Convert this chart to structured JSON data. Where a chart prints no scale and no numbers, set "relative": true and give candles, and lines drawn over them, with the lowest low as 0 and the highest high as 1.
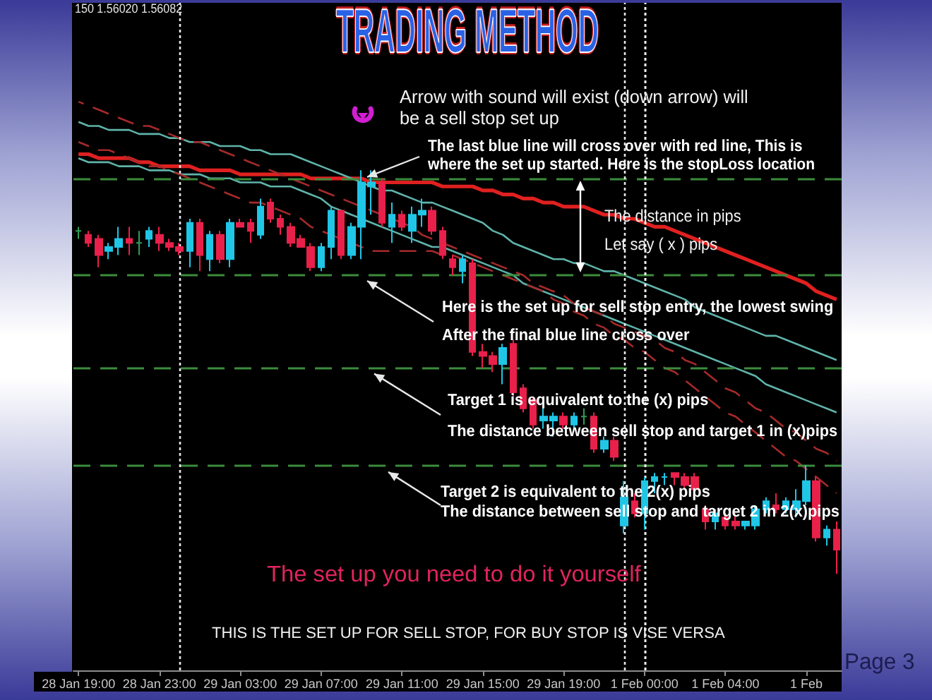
{
  "chart_data": {
    "type": "candlestick",
    "title": "TRADING METHOD",
    "relative": true,
    "marker": "none",
    "categories": [
      "28 Jan 19:00",
      null,
      null,
      null,
      null,
      null,
      null,
      null,
      "28 Jan 23:00",
      null,
      null,
      null,
      null,
      null,
      null,
      null,
      "29 Jan 03:00",
      null,
      null,
      null,
      null,
      null,
      null,
      null,
      "29 Jan 07:00",
      null,
      null,
      null,
      null,
      null,
      null,
      null,
      "29 Jan 11:00",
      null,
      null,
      null,
      null,
      null,
      null,
      null,
      "29 Jan 15:00",
      null,
      null,
      null,
      null,
      null,
      null,
      null,
      "29 Jan 19:00",
      null,
      null,
      null,
      null,
      null,
      null,
      null,
      "1 Feb 00:00",
      null,
      null,
      null,
      null,
      null,
      null,
      null,
      "1 Feb 04:00",
      null,
      null,
      null,
      null,
      null,
      null,
      null,
      "1 Feb",
      null,
      null,
      null
    ],
    "ohlc": [
      [
        0.85,
        0.86,
        0.83,
        0.85
      ],
      [
        0.84,
        0.85,
        0.81,
        0.82
      ],
      [
        0.83,
        0.84,
        0.76,
        0.79
      ],
      [
        0.8,
        0.82,
        0.78,
        0.81
      ],
      [
        0.81,
        0.86,
        0.79,
        0.83
      ],
      [
        0.83,
        0.86,
        0.79,
        0.82
      ],
      [
        0.82,
        0.85,
        0.79,
        0.82
      ],
      [
        0.83,
        0.86,
        0.81,
        0.85
      ],
      [
        0.84,
        0.86,
        0.8,
        0.82
      ],
      [
        0.82,
        0.83,
        0.8,
        0.81
      ],
      [
        0.81,
        0.82,
        0.79,
        0.8
      ],
      [
        0.8,
        0.88,
        0.76,
        0.87
      ],
      [
        0.87,
        0.88,
        0.75,
        0.79
      ],
      [
        0.78,
        0.85,
        0.75,
        0.84
      ],
      [
        0.84,
        0.85,
        0.77,
        0.78
      ],
      [
        0.78,
        0.88,
        0.76,
        0.87
      ],
      [
        0.87,
        0.88,
        0.86,
        0.86
      ],
      [
        0.87,
        0.88,
        0.82,
        0.85
      ],
      [
        0.84,
        0.93,
        0.83,
        0.91
      ],
      [
        0.92,
        0.93,
        0.87,
        0.88
      ],
      [
        0.88,
        0.89,
        0.84,
        0.86
      ],
      [
        0.86,
        0.87,
        0.81,
        0.82
      ],
      [
        0.83,
        0.84,
        0.81,
        0.81
      ],
      [
        0.81,
        0.82,
        0.75,
        0.76
      ],
      [
        0.76,
        0.82,
        0.75,
        0.81
      ],
      [
        0.81,
        0.91,
        0.78,
        0.9
      ],
      [
        0.9,
        0.9,
        0.78,
        0.79
      ],
      [
        0.79,
        0.87,
        0.78,
        0.86
      ],
      [
        0.86,
        1.0,
        0.78,
        0.97
      ],
      [
        0.96,
        1.0,
        0.89,
        0.97
      ],
      [
        0.97,
        0.98,
        0.86,
        0.87
      ],
      [
        0.86,
        0.92,
        0.82,
        0.89
      ],
      [
        0.89,
        0.9,
        0.85,
        0.86
      ],
      [
        0.85,
        0.91,
        0.82,
        0.89
      ],
      [
        0.89,
        0.93,
        0.86,
        0.9
      ],
      [
        0.9,
        0.91,
        0.84,
        0.85
      ],
      [
        0.85,
        0.86,
        0.78,
        0.79
      ],
      [
        0.78,
        0.79,
        0.74,
        0.76
      ],
      [
        0.75,
        0.79,
        0.72,
        0.78
      ],
      [
        0.77,
        0.78,
        0.54,
        0.55
      ],
      [
        0.55,
        0.57,
        0.51,
        0.54
      ],
      [
        0.54,
        0.55,
        0.5,
        0.52
      ],
      [
        0.52,
        0.57,
        0.47,
        0.56
      ],
      [
        0.57,
        0.58,
        0.44,
        0.45
      ],
      [
        0.46,
        0.47,
        0.4,
        0.41
      ],
      [
        0.43,
        0.44,
        0.36,
        0.37
      ],
      [
        0.38,
        0.41,
        0.36,
        0.39
      ],
      [
        0.38,
        0.4,
        0.34,
        0.39
      ],
      [
        0.39,
        0.4,
        0.36,
        0.37
      ],
      [
        0.37,
        0.4,
        0.36,
        0.39
      ],
      [
        0.39,
        0.41,
        0.37,
        0.39
      ],
      [
        0.39,
        0.4,
        0.3,
        0.31
      ],
      [
        0.31,
        0.34,
        0.3,
        0.33
      ],
      [
        0.33,
        0.34,
        0.28,
        0.29
      ],
      [
        0.12,
        0.23,
        0.1,
        0.19
      ],
      [
        0.18,
        0.2,
        0.14,
        0.15
      ],
      [
        0.15,
        0.24,
        0.11,
        0.23
      ],
      [
        0.23,
        0.25,
        0.2,
        0.24
      ],
      [
        0.24,
        0.25,
        0.22,
        0.24
      ],
      [
        0.25,
        0.25,
        0.22,
        0.24
      ],
      [
        0.24,
        0.25,
        0.21,
        0.22
      ],
      [
        0.24,
        0.25,
        0.2,
        0.21
      ],
      [
        0.16,
        0.17,
        0.11,
        0.13
      ],
      [
        0.13,
        0.16,
        0.11,
        0.15
      ],
      [
        0.14,
        0.15,
        0.11,
        0.12
      ],
      [
        0.13,
        0.15,
        0.11,
        0.12
      ],
      [
        0.12,
        0.13,
        0.11,
        0.13
      ],
      [
        0.12,
        0.17,
        0.11,
        0.16
      ],
      [
        0.16,
        0.19,
        0.15,
        0.18
      ],
      [
        0.17,
        0.2,
        0.15,
        0.16
      ],
      [
        0.16,
        0.19,
        0.15,
        0.18
      ],
      [
        0.16,
        0.21,
        0.14,
        0.18
      ],
      [
        0.18,
        0.27,
        0.17,
        0.23
      ],
      [
        0.23,
        0.24,
        0.08,
        0.09
      ],
      [
        0.09,
        0.12,
        0.07,
        0.11
      ],
      [
        0.11,
        0.13,
        0.0,
        0.06
      ]
    ],
    "colors": [
      "#2f9e56",
      "#e8204a",
      "#e8204a",
      "#1fc6e6",
      "#1fc6e6",
      "#e8204a",
      "#2f9e56",
      "#1fc6e6",
      "#e8204a",
      "#e8204a",
      "#e8204a",
      "#1fc6e6",
      "#e8204a",
      "#1fc6e6",
      "#e8204a",
      "#1fc6e6",
      "#e8204a",
      "#e8204a",
      "#1fc6e6",
      "#e8204a",
      "#e8204a",
      "#e8204a",
      "#e8204a",
      "#e8204a",
      "#1fc6e6",
      "#1fc6e6",
      "#e8204a",
      "#1fc6e6",
      "#1fc6e6",
      "#1fc6e6",
      "#e8204a",
      "#1fc6e6",
      "#e8204a",
      "#1fc6e6",
      "#1fc6e6",
      "#e8204a",
      "#e8204a",
      "#e8204a",
      "#1fc6e6",
      "#e8204a",
      "#e8204a",
      "#e8204a",
      "#1fc6e6",
      "#e8204a",
      "#e8204a",
      "#e8204a",
      "#1fc6e6",
      "#1fc6e6",
      "#e8204a",
      "#1fc6e6",
      "#2f9e56",
      "#e8204a",
      "#1fc6e6",
      "#e8204a",
      "#1fc6e6",
      "#e8204a",
      "#1fc6e6",
      "#1fc6e6",
      "#1fc6e6",
      "#e8204a",
      "#e8204a",
      "#e8204a",
      "#e8204a",
      "#1fc6e6",
      "#e8204a",
      "#e8204a",
      "#1fc6e6",
      "#1fc6e6",
      "#1fc6e6",
      "#e8204a",
      "#1fc6e6",
      "#1fc6e6",
      "#1fc6e6",
      "#e8204a",
      "#1fc6e6",
      "#e8204a"
    ],
    "series": [
      {
        "type": "line",
        "color": "#e02020",
        "line_style": "solid",
        "values": [
          1.04,
          1.04,
          1.03,
          1.03,
          1.03,
          1.03,
          1.02,
          1.02,
          1.01,
          1.01,
          1.01,
          1.01,
          1.0,
          1.0,
          1.0,
          1.0,
          0.99,
          0.99,
          0.99,
          0.99,
          0.99,
          0.99,
          0.99,
          0.98,
          0.98,
          0.98,
          0.98,
          0.98,
          0.98,
          0.97,
          0.97,
          0.97,
          0.97,
          0.97,
          0.97,
          0.97,
          0.96,
          0.96,
          0.96,
          0.96,
          0.95,
          0.95,
          0.94,
          0.94,
          0.93,
          0.93,
          0.92,
          0.92,
          0.91,
          0.91,
          0.91,
          0.9,
          0.89,
          0.89,
          0.88,
          0.88,
          0.87,
          0.86,
          0.86,
          0.85,
          0.84,
          0.83,
          0.82,
          0.81,
          0.8,
          0.79,
          0.78,
          0.77,
          0.76,
          0.75,
          0.74,
          0.73,
          0.72,
          0.7,
          0.69,
          0.68
        ]
      },
      {
        "type": "line",
        "color": "#5fb3aa",
        "line_style": "solid",
        "values": [
          1.12,
          1.11,
          1.11,
          1.1,
          1.1,
          1.1,
          1.09,
          1.09,
          1.09,
          1.08,
          1.08,
          1.07,
          1.07,
          1.07,
          1.06,
          1.06,
          1.06,
          1.05,
          1.05,
          1.04,
          1.04,
          1.04,
          1.03,
          1.02,
          1.01,
          1.0,
          0.99,
          0.98,
          0.97,
          0.96,
          0.95,
          0.95,
          0.94,
          0.93,
          0.92,
          0.92,
          0.91,
          0.9,
          0.89,
          0.88,
          0.87,
          0.85,
          0.84,
          0.82,
          0.81,
          0.8,
          0.79,
          0.78,
          0.78,
          0.77,
          0.77,
          0.76,
          0.75,
          0.75,
          0.74,
          0.73,
          0.72,
          0.71,
          0.7,
          0.69,
          0.68,
          0.66,
          0.65,
          0.64,
          0.63,
          0.62,
          0.61,
          0.6,
          0.59,
          0.59,
          0.58,
          0.57,
          0.56,
          0.55,
          0.54,
          0.53
        ]
      },
      {
        "type": "line",
        "color": "#5fb3aa",
        "line_style": "solid",
        "values": [
          1.03,
          1.02,
          1.02,
          1.02,
          1.01,
          1.01,
          1.01,
          1.0,
          1.0,
          1.0,
          0.99,
          0.99,
          0.99,
          0.98,
          0.98,
          0.98,
          0.97,
          0.97,
          0.97,
          0.96,
          0.96,
          0.96,
          0.95,
          0.94,
          0.93,
          0.91,
          0.9,
          0.89,
          0.88,
          0.87,
          0.86,
          0.85,
          0.84,
          0.83,
          0.82,
          0.81,
          0.81,
          0.8,
          0.79,
          0.78,
          0.77,
          0.76,
          0.75,
          0.74,
          0.72,
          0.71,
          0.7,
          0.69,
          0.68,
          0.67,
          0.66,
          0.65,
          0.64,
          0.63,
          0.62,
          0.61,
          0.6,
          0.59,
          0.58,
          0.57,
          0.56,
          0.55,
          0.54,
          0.53,
          0.52,
          0.51,
          0.5,
          0.49,
          0.47,
          0.46,
          0.45,
          0.44,
          0.43,
          0.42,
          0.41,
          0.4
        ]
      },
      {
        "type": "line",
        "color": "#a52a2a",
        "line_style": "dashed",
        "values": [
          1.17,
          1.16,
          1.15,
          1.14,
          1.13,
          1.12,
          1.11,
          1.11,
          1.1,
          1.09,
          1.08,
          1.07,
          1.07,
          1.06,
          1.05,
          1.04,
          1.03,
          1.02,
          1.01,
          1.0,
          0.99,
          0.98,
          0.97,
          0.96,
          0.95,
          0.94,
          0.93,
          0.92,
          0.91,
          0.9,
          0.89,
          0.88,
          0.87,
          0.86,
          0.84,
          0.83,
          0.82,
          0.81,
          0.8,
          0.79,
          0.78,
          0.77,
          0.76,
          0.75,
          0.74,
          0.72,
          0.71,
          0.7,
          0.69,
          0.67,
          0.66,
          0.65,
          0.64,
          0.62,
          0.61,
          0.6,
          0.59,
          0.58,
          0.56,
          0.55,
          0.53,
          0.52,
          0.5,
          0.48,
          0.46,
          0.45,
          0.43,
          0.41,
          0.4,
          0.38,
          0.36,
          0.35,
          0.33,
          0.31,
          0.3,
          0.28
        ]
      },
      {
        "type": "line",
        "color": "#a52a2a",
        "line_style": "dashed",
        "values": [
          1.07,
          1.06,
          1.05,
          1.05,
          1.04,
          1.03,
          1.02,
          1.01,
          1.01,
          1.0,
          0.99,
          0.98,
          0.97,
          0.96,
          0.95,
          0.94,
          0.93,
          0.92,
          0.92,
          0.91,
          0.9,
          0.89,
          0.88,
          0.86,
          0.85,
          0.84,
          0.83,
          0.82,
          0.81,
          0.8,
          0.8,
          0.8,
          0.8,
          0.8,
          0.8,
          0.8,
          0.79,
          0.79,
          0.78,
          0.77,
          0.76,
          0.75,
          0.74,
          0.73,
          0.72,
          0.71,
          0.7,
          0.68,
          0.67,
          0.65,
          0.64,
          0.62,
          0.61,
          0.59,
          0.58,
          0.56,
          0.55,
          0.53,
          0.51,
          0.5,
          0.48,
          0.46,
          0.44,
          0.42,
          0.4,
          0.39,
          0.37,
          0.35,
          0.33,
          0.31,
          0.29,
          0.28,
          0.26,
          0.24,
          0.22,
          0.2
        ]
      }
    ],
    "ref_lines": [
      {
        "axis": "y",
        "value": 0.98,
        "color": "#3c8c3c",
        "line_style": "dashed"
      },
      {
        "axis": "y",
        "value": 0.74,
        "color": "#3c8c3c",
        "line_style": "dashed"
      },
      {
        "axis": "y",
        "value": 0.51,
        "color": "#3c8c3c",
        "line_style": "dashed"
      },
      {
        "axis": "y",
        "value": 0.27,
        "color": "#3c8c3c",
        "line_style": "dashed"
      },
      {
        "axis": "x",
        "value": "1 Feb 00:00",
        "color": "#f0f0f0",
        "line_style": "dotted"
      }
    ],
    "annotations": [
      "150 1.56020 1.56082",
      "Arrow with sound will exist (down arrow) will\nbe a sell stop set up",
      {
        "text": "The last blue line will cross over with red line, This is\nwhere the set up started. Here is the stopLoss location",
        "y": 0.98
      },
      "The distance in pips",
      "Let say ( x ) pips",
      {
        "text": "Here is the set up for sell stop entry, the lowest swing\nAfter the final blue line cross over",
        "y": 0.74
      },
      {
        "text": "Target 1 is equivalent to the (x) pips\nThe distance between sell stop and target 1 in (x)pips",
        "y": 0.51
      },
      {
        "text": "Target 2 is equivalent to the 2(x) pips\nThe distance between sell stop and target 2 in 2(x)pips",
        "y": 0.27
      },
      "The set up you need to do it yourself",
      "THIS IS THE SET UP FOR SELL STOP, FOR BUY STOP IS VISE VERSA",
      "Page 3"
    ]
  }
}
